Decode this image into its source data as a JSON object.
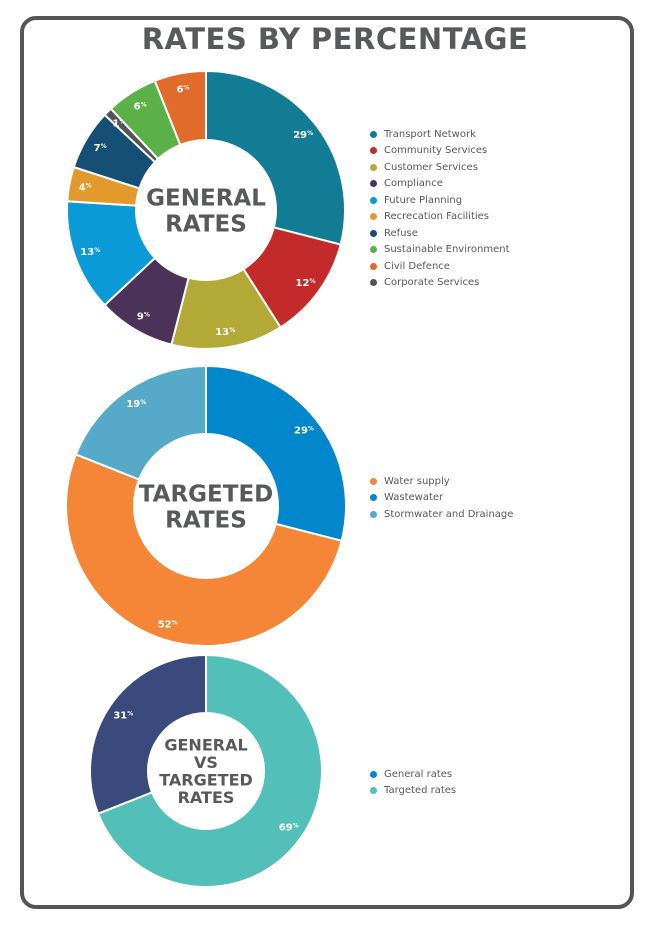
{
  "page": {
    "title": "RATES BY PERCENTAGE"
  },
  "chart_data": [
    {
      "type": "pie",
      "donut": true,
      "center_label": [
        "GENERAL",
        "RATES"
      ],
      "value_unit": "%",
      "legend_position": "right",
      "slices": [
        {
          "label": "Transport Network",
          "value": 29,
          "color": "#127c95"
        },
        {
          "label": "Community Services",
          "value": 12,
          "color": "#c32a2a"
        },
        {
          "label": "Customer Services",
          "value": 13,
          "color": "#b2a936"
        },
        {
          "label": "Compliance",
          "value": 9,
          "color": "#4a3258"
        },
        {
          "label": "Future Planning",
          "value": 13,
          "color": "#0a9ad8"
        },
        {
          "label": "Recrecation Facilities",
          "value": 4,
          "color": "#e39a2d"
        },
        {
          "label": "Refuse",
          "value": 7,
          "color": "#154f75"
        },
        {
          "label": "Sustainable Environment",
          "value": 6,
          "color": "#5bb048"
        },
        {
          "label": "Civil Defence",
          "value": 6,
          "color": "#e06b2a"
        },
        {
          "label": "Corporate Services",
          "value": 1,
          "color": "#555555"
        }
      ],
      "draw_order": [
        "Transport Network",
        "Community Services",
        "Customer Services",
        "Compliance",
        "Future Planning",
        "Recrecation Facilities",
        "Refuse",
        "Corporate Services",
        "Sustainable Environment",
        "Civil Defence"
      ]
    },
    {
      "type": "pie",
      "donut": true,
      "center_label": [
        "TARGETED",
        "RATES"
      ],
      "value_unit": "%",
      "legend_position": "right",
      "slices": [
        {
          "label": "Water supply",
          "value": 52,
          "color": "#f58537"
        },
        {
          "label": "Wastewater",
          "value": 29,
          "color": "#0287cc"
        },
        {
          "label": "Stormwater and Drainage",
          "value": 19,
          "color": "#56a9c8"
        }
      ],
      "draw_order": [
        "Wastewater",
        "Water supply",
        "Stormwater and Drainage"
      ]
    },
    {
      "type": "pie",
      "donut": true,
      "center_label": [
        "GENERAL",
        "VS",
        "TARGETED",
        "RATES"
      ],
      "value_unit": "%",
      "legend_position": "right",
      "slices": [
        {
          "label": "General rates",
          "value": 31,
          "color": "#3a4a7c"
        },
        {
          "label": "Targeted rates",
          "value": 69,
          "color": "#52c0b9"
        }
      ],
      "draw_order": [
        "Targeted rates",
        "General rates"
      ],
      "legend_colors": [
        "#0287cc",
        "#52c0b9"
      ]
    }
  ]
}
